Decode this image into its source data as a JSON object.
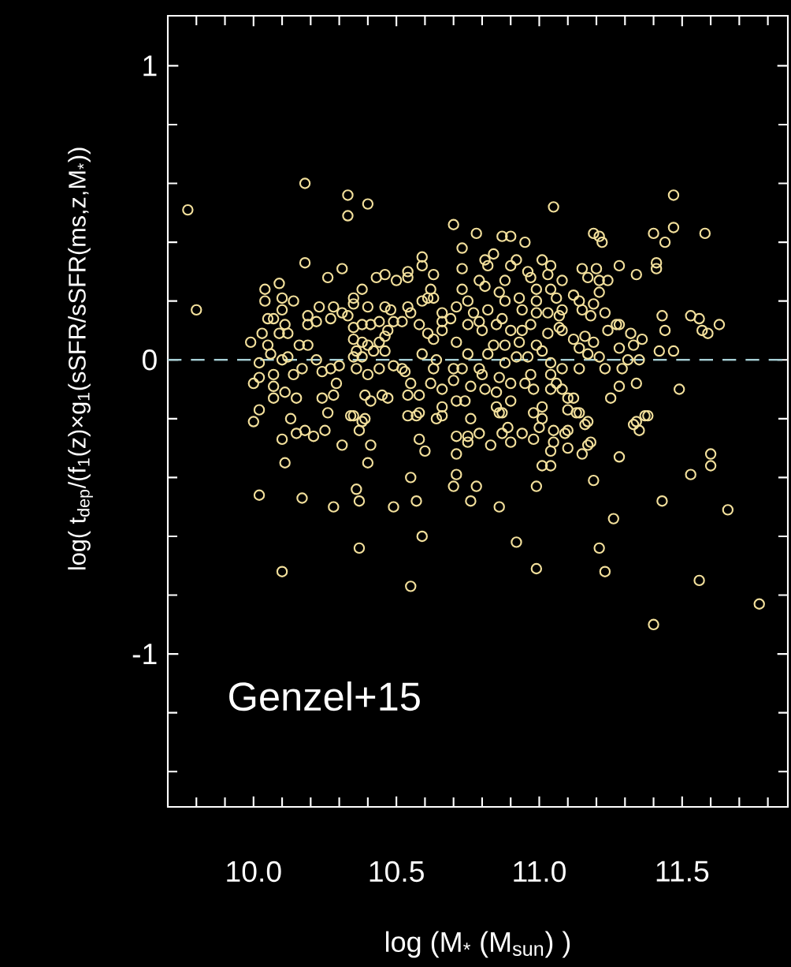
{
  "chart_data": {
    "type": "scatter",
    "xlabel": "log (M$_{*}$ (M$_{sun}$) )",
    "ylabel": "log( t$_{dep}$/(f$_{1}$(z)×g$_{1}$(sSFR/sSFR(ms,z,M$_{*}$))",
    "annotations": [
      "Genzel+15"
    ],
    "x": [
      10.02,
      10.1,
      10.11,
      10.17,
      10.28,
      10.36,
      10.37,
      10.37,
      10.4,
      10.49,
      10.55,
      10.55,
      10.57,
      10.59,
      10.6,
      10.58,
      10.71,
      10.71,
      10.7,
      10.78,
      10.76,
      10.86,
      10.92,
      10.99,
      10.99,
      11.01,
      11.04,
      11.04,
      11.1,
      11.15,
      11.19,
      11.21,
      11.23,
      11.26,
      11.28,
      11.33,
      11.35,
      11.37,
      11.4,
      11.43,
      11.53,
      11.56,
      11.6,
      11.6,
      11.66,
      11.77,
      10.71,
      10.75,
      10.75,
      10.79,
      10.83,
      10.87,
      10.89,
      10.9,
      10.94,
      10.98,
      11.0,
      11.05,
      11.05,
      11.09,
      11.1,
      11.16,
      11.17,
      11.18,
      11.13,
      10.86,
      10.76,
      10.64,
      10.54,
      10.38,
      10.13,
      10.0,
      10.15,
      10.18,
      10.21,
      10.25,
      10.26,
      10.31,
      10.34,
      10.37,
      10.41,
      10.57,
      10.1,
      9.77,
      9.8,
      10.18,
      10.33,
      10.33,
      10.4,
      10.18,
      10.26,
      10.31,
      10.7,
      10.78,
      10.73,
      10.73,
      10.59,
      10.59,
      10.63,
      10.43,
      10.46,
      10.5,
      10.54,
      10.54,
      10.04,
      10.09,
      10.04,
      10.1,
      10.14,
      10.1,
      10.05,
      10.07,
      10.11,
      10.19,
      10.19,
      10.22,
      10.23,
      10.28,
      10.27,
      10.31,
      10.33,
      10.35,
      10.38,
      10.35,
      10.4,
      10.35,
      10.38,
      10.41,
      10.44,
      10.46,
      10.48,
      10.49,
      10.52,
      10.54,
      10.55,
      10.59,
      10.61,
      10.62,
      10.63,
      10.58,
      10.61,
      10.66,
      10.66,
      10.69,
      10.71,
      10.73,
      10.75,
      10.77,
      10.75,
      10.71,
      10.66,
      10.63,
      10.59,
      10.64,
      10.63,
      10.62,
      10.66,
      10.7,
      10.7,
      10.73,
      10.75,
      10.76,
      10.74,
      10.71,
      10.66,
      10.66,
      10.58,
      10.58,
      10.54,
      10.55,
      10.53,
      10.52,
      10.49,
      10.46,
      10.42,
      10.46,
      10.47,
      10.44,
      10.4,
      10.38,
      10.35,
      10.36,
      10.35,
      10.38,
      10.36,
      10.4,
      10.44,
      10.39,
      10.41,
      10.45,
      10.47,
      10.39,
      10.35,
      10.28,
      10.24,
      10.29,
      10.27,
      10.24,
      10.3,
      10.22,
      10.19,
      10.16,
      10.17,
      10.14,
      10.15,
      10.11,
      10.07,
      10.07,
      10.07,
      10.1,
      10.12,
      10.06,
      10.05,
      10.02,
      9.99,
      10.03,
      10.02,
      10.0,
      10.02,
      10.09,
      10.12,
      11.47,
      11.05,
      10.87,
      10.9,
      10.95,
      11.19,
      11.21,
      11.22,
      11.4,
      11.47,
      11.44,
      11.58,
      10.84,
      10.81,
      10.82,
      10.9,
      10.92,
      10.96,
      10.97,
      11.01,
      11.04,
      11.03,
      11.15,
      11.17,
      11.2,
      11.21,
      11.24,
      11.28,
      11.41,
      11.41,
      11.34,
      10.79,
      10.81,
      10.88,
      10.86,
      10.88,
      10.93,
      10.99,
      10.99,
      11.04,
      11.08,
      11.06,
      11.12,
      11.14,
      11.21,
      11.19,
      10.82,
      10.87,
      10.94,
      10.99,
      11.03,
      11.08,
      11.07,
      11.15,
      11.18,
      11.23,
      11.28,
      11.27,
      11.24,
      11.32,
      11.36,
      11.43,
      11.44,
      11.42,
      11.47,
      11.53,
      11.56,
      11.57,
      11.59,
      11.63,
      10.79,
      10.8,
      10.85,
      10.9,
      10.94,
      10.97,
      11.03,
      11.07,
      11.08,
      11.12,
      11.16,
      11.19,
      11.14,
      11.17,
      11.21,
      11.28,
      11.33,
      11.35,
      11.31,
      11.29,
      11.23,
      11.14,
      11.08,
      11.04,
      10.96,
      10.92,
      10.88,
      10.82,
      10.84,
      10.88,
      10.93,
      10.99,
      11.01,
      10.79,
      10.8,
      10.86,
      10.97,
      11.04,
      11.06,
      10.9,
      10.81,
      10.85,
      10.95,
      10.98,
      11.04,
      11.08,
      11.1,
      11.12,
      11.14,
      11.1,
      11.01,
      11.01,
      10.98,
      10.9,
      10.85,
      10.87,
      11.25,
      11.28,
      11.34,
      11.38,
      11.34,
      11.49,
      11.17
    ],
    "series": [
      {
        "color": "#f3e09c",
        "values": [
          -0.46,
          -0.72,
          -0.35,
          -0.47,
          -0.5,
          -0.44,
          -0.48,
          -0.64,
          -0.35,
          -0.5,
          -0.4,
          -0.77,
          -0.48,
          -0.6,
          -0.31,
          -0.27,
          -0.32,
          -0.39,
          -0.43,
          -0.43,
          -0.48,
          -0.5,
          -0.62,
          -0.43,
          -0.71,
          -0.36,
          -0.36,
          -0.31,
          -0.3,
          -0.32,
          -0.41,
          -0.64,
          -0.72,
          -0.54,
          -0.33,
          -0.22,
          -0.24,
          -0.19,
          -0.9,
          -0.48,
          -0.39,
          -0.75,
          -0.32,
          -0.36,
          -0.51,
          -0.83,
          -0.26,
          -0.26,
          -0.28,
          -0.25,
          -0.29,
          -0.25,
          -0.23,
          -0.28,
          -0.25,
          -0.27,
          -0.23,
          -0.24,
          -0.28,
          -0.25,
          -0.24,
          -0.22,
          -0.29,
          -0.28,
          -0.18,
          -0.18,
          -0.2,
          -0.2,
          -0.19,
          -0.21,
          -0.2,
          -0.21,
          -0.25,
          -0.24,
          -0.26,
          -0.24,
          -0.18,
          -0.29,
          -0.19,
          -0.24,
          -0.29,
          -0.19,
          -0.27,
          0.51,
          0.17,
          0.6,
          0.56,
          0.49,
          0.53,
          0.33,
          0.28,
          0.31,
          0.46,
          0.43,
          0.38,
          0.31,
          0.35,
          0.32,
          0.29,
          0.28,
          0.29,
          0.27,
          0.3,
          0.28,
          0.24,
          0.26,
          0.2,
          0.21,
          0.2,
          0.17,
          0.14,
          0.14,
          0.12,
          0.15,
          0.12,
          0.13,
          0.18,
          0.18,
          0.14,
          0.16,
          0.15,
          0.21,
          0.24,
          0.19,
          0.18,
          0.11,
          0.12,
          0.12,
          0.13,
          0.18,
          0.17,
          0.13,
          0.13,
          0.18,
          0.16,
          0.2,
          0.21,
          0.24,
          0.21,
          0.12,
          0.09,
          0.16,
          0.13,
          0.14,
          0.18,
          0.24,
          0.2,
          0.16,
          0.12,
          0.06,
          0.1,
          0.07,
          0.02,
          0.0,
          -0.03,
          -0.08,
          -0.1,
          -0.07,
          -0.03,
          -0.03,
          0.02,
          -0.09,
          -0.14,
          -0.14,
          -0.16,
          -0.19,
          -0.18,
          -0.12,
          -0.12,
          -0.08,
          -0.04,
          -0.03,
          -0.02,
          0.03,
          0.03,
          0.08,
          0.1,
          0.06,
          0.05,
          0.06,
          0.07,
          0.03,
          0.01,
          0.01,
          -0.03,
          -0.05,
          -0.03,
          -0.12,
          -0.14,
          -0.12,
          -0.13,
          -0.2,
          -0.19,
          -0.12,
          -0.13,
          -0.08,
          -0.03,
          -0.04,
          -0.02,
          0.0,
          0.05,
          0.05,
          -0.03,
          -0.05,
          -0.13,
          -0.11,
          -0.13,
          -0.09,
          -0.05,
          0.0,
          0.01,
          0.02,
          0.05,
          -0.01,
          0.06,
          0.09,
          -0.06,
          -0.08,
          -0.17,
          0.09,
          0.09,
          0.56,
          0.52,
          0.42,
          0.42,
          0.4,
          0.43,
          0.42,
          0.4,
          0.43,
          0.45,
          0.4,
          0.43,
          0.36,
          0.34,
          0.32,
          0.32,
          0.34,
          0.3,
          0.28,
          0.34,
          0.32,
          0.29,
          0.31,
          0.28,
          0.31,
          0.27,
          0.27,
          0.32,
          0.33,
          0.31,
          0.29,
          0.27,
          0.25,
          0.27,
          0.23,
          0.2,
          0.21,
          0.24,
          0.2,
          0.24,
          0.27,
          0.21,
          0.22,
          0.2,
          0.23,
          0.19,
          0.17,
          0.14,
          0.17,
          0.16,
          0.16,
          0.17,
          0.15,
          0.17,
          0.15,
          0.16,
          0.12,
          0.12,
          0.1,
          0.09,
          0.07,
          0.15,
          0.1,
          0.03,
          0.03,
          0.15,
          0.14,
          0.1,
          0.09,
          0.12,
          0.13,
          0.1,
          0.12,
          0.1,
          0.1,
          0.12,
          0.09,
          0.11,
          0.1,
          0.07,
          0.08,
          0.06,
          0.04,
          0.02,
          0.01,
          0.04,
          0.05,
          0.0,
          0.0,
          -0.03,
          -0.03,
          -0.03,
          -0.03,
          -0.01,
          0.01,
          0.01,
          -0.01,
          0.02,
          0.05,
          0.05,
          0.06,
          0.05,
          0.03,
          -0.03,
          -0.05,
          -0.06,
          -0.05,
          -0.05,
          -0.08,
          -0.08,
          -0.1,
          -0.11,
          -0.08,
          -0.1,
          -0.1,
          -0.1,
          -0.13,
          -0.13,
          -0.18,
          -0.17,
          -0.16,
          -0.2,
          -0.18,
          -0.14,
          -0.16,
          -0.18,
          -0.13,
          -0.09,
          -0.08,
          -0.19,
          -0.21,
          -0.1,
          -0.21
        ]
      }
    ],
    "marker": "circle",
    "xlim": [
      9.7,
      11.87
    ],
    "ylim": [
      -1.52,
      1.17
    ],
    "xticks": [
      {
        "value": 9.8,
        "label": null
      },
      {
        "value": 9.9,
        "label": null
      },
      {
        "value": 10.0,
        "label": "10.0"
      },
      {
        "value": 10.1,
        "label": null
      },
      {
        "value": 10.2,
        "label": null
      },
      {
        "value": 10.3,
        "label": null
      },
      {
        "value": 10.4,
        "label": null
      },
      {
        "value": 10.5,
        "label": "10.5"
      },
      {
        "value": 10.6,
        "label": null
      },
      {
        "value": 10.7,
        "label": null
      },
      {
        "value": 10.8,
        "label": null
      },
      {
        "value": 10.9,
        "label": null
      },
      {
        "value": 11.0,
        "label": "11.0"
      },
      {
        "value": 11.1,
        "label": null
      },
      {
        "value": 11.2,
        "label": null
      },
      {
        "value": 11.3,
        "label": null
      },
      {
        "value": 11.4,
        "label": null
      },
      {
        "value": 11.5,
        "label": "11.5"
      },
      {
        "value": 11.6,
        "label": null
      },
      {
        "value": 11.7,
        "label": null
      },
      {
        "value": 11.8,
        "label": null
      }
    ],
    "yticks": [
      {
        "value": -1.4,
        "label": null
      },
      {
        "value": -1.2,
        "label": null
      },
      -1,
      {
        "value": -0.8,
        "label": null
      },
      {
        "value": -0.6,
        "label": null
      },
      {
        "value": -0.4,
        "label": null
      },
      {
        "value": -0.2,
        "label": null
      },
      0,
      {
        "value": 0.2,
        "label": null
      },
      {
        "value": 0.4,
        "label": null
      },
      {
        "value": 0.6,
        "label": null
      },
      {
        "value": 0.8,
        "label": null
      },
      1
    ],
    "ref_lines": [
      {
        "axis": "y",
        "value": 0,
        "color": "#a6cfd5",
        "line_style": "dashed"
      }
    ]
  }
}
